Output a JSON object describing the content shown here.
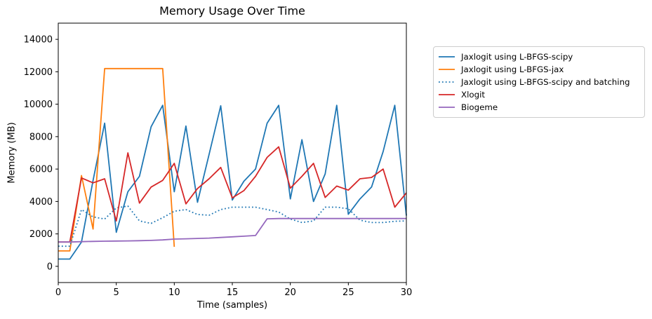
{
  "figure": {
    "title": "Memory Usage Over Time",
    "xlabel": "Time (samples)",
    "ylabel": "Memory (MB)"
  },
  "chart_data": {
    "type": "line",
    "title": "Memory Usage Over Time",
    "xlabel": "Time (samples)",
    "ylabel": "Memory (MB)",
    "xlim": [
      0,
      30
    ],
    "ylim": [
      -1000,
      15000
    ],
    "xticks": [
      0,
      5,
      10,
      15,
      20,
      25,
      30
    ],
    "yticks": [
      0,
      2000,
      4000,
      6000,
      8000,
      10000,
      12000,
      14000
    ],
    "grid": false,
    "legend_position": "outside-right",
    "axis_color": "#000000",
    "legend_border_color": "#cccccc",
    "x": [
      0,
      1,
      2,
      3,
      4,
      5,
      6,
      7,
      8,
      9,
      10,
      11,
      12,
      13,
      14,
      15,
      16,
      17,
      18,
      19,
      20,
      21,
      22,
      23,
      24,
      25,
      26,
      27,
      28,
      29,
      30
    ],
    "series": [
      {
        "name": "Jaxlogit using L-BFGS-scipy",
        "color": "#1f77b4",
        "style": "solid",
        "values": [
          450,
          450,
          1500,
          5300,
          8830,
          2100,
          4600,
          5550,
          8610,
          9930,
          4600,
          8650,
          3950,
          6900,
          9900,
          4090,
          5250,
          6000,
          8830,
          9930,
          4160,
          7810,
          4000,
          5700,
          9930,
          3210,
          4160,
          4890,
          7080,
          9930,
          3130
        ]
      },
      {
        "name": "Jaxlogit using L-BFGS-jax",
        "color": "#ff7f0e",
        "style": "solid",
        "values": [
          950,
          950,
          5600,
          2300,
          12200,
          12200,
          12200,
          12200,
          12200,
          12200,
          1200,
          null,
          null,
          null,
          null,
          null,
          null,
          null,
          null,
          null,
          null,
          null,
          null,
          null,
          null,
          null,
          null,
          null,
          null,
          null,
          null
        ]
      },
      {
        "name": "Jaxlogit using L-BFGS-scipy and batching",
        "color": "#1f77b4",
        "style": "dotted",
        "values": [
          1240,
          1240,
          3500,
          3050,
          2920,
          3600,
          3720,
          2800,
          2650,
          3000,
          3400,
          3500,
          3200,
          3150,
          3500,
          3650,
          3650,
          3650,
          3500,
          3350,
          2920,
          2700,
          2800,
          3650,
          3650,
          3550,
          2850,
          2700,
          2700,
          2780,
          2800
        ]
      },
      {
        "name": "Xlogit",
        "color": "#d62728",
        "style": "solid",
        "values": [
          1500,
          1500,
          5450,
          5150,
          5400,
          2800,
          7000,
          3900,
          4890,
          5300,
          6350,
          3850,
          4800,
          5400,
          6100,
          4220,
          4670,
          5550,
          6720,
          7370,
          4820,
          5550,
          6350,
          4250,
          4950,
          4700,
          5400,
          5480,
          6000,
          3650,
          4530
        ]
      },
      {
        "name": "Biogeme",
        "color": "#9467bd",
        "style": "solid",
        "values": [
          1500,
          1500,
          1520,
          1540,
          1550,
          1560,
          1570,
          1580,
          1600,
          1630,
          1680,
          1700,
          1720,
          1740,
          1780,
          1820,
          1860,
          1900,
          2930,
          2950,
          2950,
          2950,
          2950,
          2950,
          2950,
          2950,
          2950,
          2950,
          2950,
          2950,
          2950
        ]
      }
    ]
  }
}
